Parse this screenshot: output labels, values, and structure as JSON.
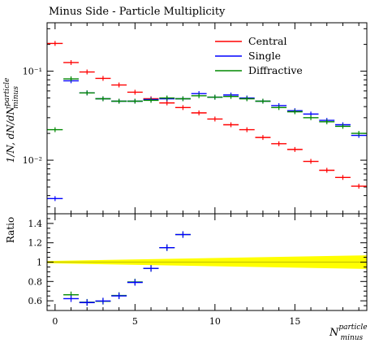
{
  "chart_data": {
    "type": "scatter",
    "title": "Minus Side - Particle Multiplicity",
    "xlabel": "N",
    "xlabel_super": "particle",
    "xlabel_sub": "minus",
    "ylabel": "1/N, dN/dN",
    "ylabel_super": "particle",
    "ylabel_sub": "minus",
    "ratio_ylabel": "Ratio",
    "y_scale": "log",
    "xlim": [
      -0.5,
      19.5
    ],
    "ylim": [
      0.0025,
      0.35
    ],
    "ratio_ylim": [
      0.5,
      1.5
    ],
    "x_ticks": [
      0,
      5,
      10,
      15
    ],
    "x_tick_labels": [
      "0",
      "5",
      "10",
      "15"
    ],
    "y_ticks": [
      0.01,
      0.1
    ],
    "y_tick_labels": [
      "10⁻²",
      "10⁻¹"
    ],
    "ratio_y_ticks": [
      0.6,
      0.8,
      1,
      1.2,
      1.4
    ],
    "ratio_y_tick_labels": [
      "0.6",
      "0.8",
      "1",
      "1.2",
      "1.4"
    ],
    "x": [
      0,
      1,
      2,
      3,
      4,
      5,
      6,
      7,
      8,
      9,
      10,
      11,
      12,
      13,
      14,
      15,
      16,
      17,
      18,
      19
    ],
    "series": [
      {
        "name": "Central",
        "color": "#ff0000",
        "values": [
          0.205,
          0.125,
          0.098,
          0.083,
          0.07,
          0.058,
          0.049,
          0.044,
          0.039,
          0.034,
          0.029,
          0.025,
          0.022,
          0.018,
          0.0153,
          0.0132,
          0.0097,
          0.0077,
          0.0064,
          0.0051
        ]
      },
      {
        "name": "Single",
        "color": "#0000ff",
        "values": [
          0.0037,
          0.078,
          0.057,
          0.049,
          0.046,
          0.046,
          0.048,
          0.049,
          0.049,
          0.056,
          0.051,
          0.054,
          0.05,
          0.046,
          0.041,
          0.036,
          0.033,
          0.028,
          0.025,
          0.019
        ]
      },
      {
        "name": "Diffractive",
        "color": "#008800",
        "values": [
          0.022,
          0.082,
          0.057,
          0.049,
          0.046,
          0.046,
          0.047,
          0.05,
          0.049,
          0.053,
          0.051,
          0.052,
          0.049,
          0.046,
          0.039,
          0.035,
          0.03,
          0.027,
          0.024,
          0.02
        ]
      }
    ],
    "ratio_points": [
      {
        "x": 1,
        "values": [
          0.662,
          0.622
        ]
      },
      {
        "x": 2,
        "values": [
          0.585,
          0.582
        ]
      },
      {
        "x": 3,
        "values": [
          0.595,
          0.598
        ]
      },
      {
        "x": 4,
        "values": [
          0.655,
          0.651
        ]
      },
      {
        "x": 5,
        "values": [
          0.795,
          0.79
        ]
      },
      {
        "x": 6,
        "values": [
          0.935,
          0.935
        ]
      },
      {
        "x": 7,
        "values": [
          1.15,
          1.15
        ]
      },
      {
        "x": 8,
        "values": [
          1.285,
          1.285
        ]
      }
    ],
    "ratio_band": {
      "color": "#ffff00",
      "x": [
        -0.5,
        19.5
      ],
      "half_width_start": 0.012,
      "half_width_end": 0.07
    },
    "legend_placement": "top-right",
    "grid": false
  }
}
